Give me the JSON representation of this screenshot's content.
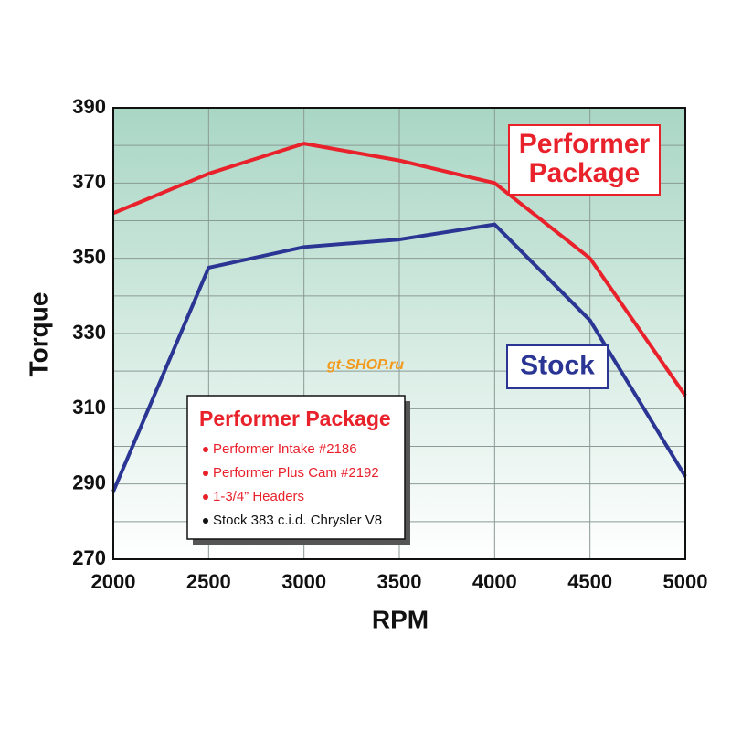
{
  "chart_data": {
    "type": "line",
    "x": [
      2000,
      2500,
      3000,
      3500,
      4000,
      4500,
      5000
    ],
    "series": [
      {
        "name": "Performer Package",
        "color": "#e8212b",
        "values": [
          362,
          372.5,
          380.5,
          376,
          370,
          350,
          313.5
        ]
      },
      {
        "name": "Stock",
        "color": "#2b3594",
        "values": [
          288,
          347.5,
          353,
          355,
          359,
          333.5,
          292
        ]
      }
    ],
    "xlim": [
      2000,
      5000
    ],
    "xticks": [
      2000,
      2500,
      3000,
      3500,
      4000,
      4500,
      5000
    ],
    "ylim": [
      270,
      390
    ],
    "yticks": [
      270,
      290,
      310,
      330,
      350,
      370,
      390
    ],
    "minor_yticks": [
      280,
      300,
      320,
      340,
      360,
      380
    ],
    "grid": true,
    "xlabel": "RPM",
    "ylabel": "Torque",
    "series_labels": [
      [
        "Performer",
        "Package"
      ],
      [
        "Stock"
      ]
    ],
    "legend": {
      "title": "Performer Package",
      "items": [
        {
          "text": "Performer Intake #2186",
          "color": "#e8212b"
        },
        {
          "text": "Performer Plus Cam #2192",
          "color": "#e8212b"
        },
        {
          "text": "1-3/4” Headers",
          "color": "#e8212b"
        },
        {
          "text": "Stock 383 c.i.d. Chrysler V8",
          "color": "#111111"
        }
      ]
    },
    "watermark": "gt-SHOP.ru"
  }
}
